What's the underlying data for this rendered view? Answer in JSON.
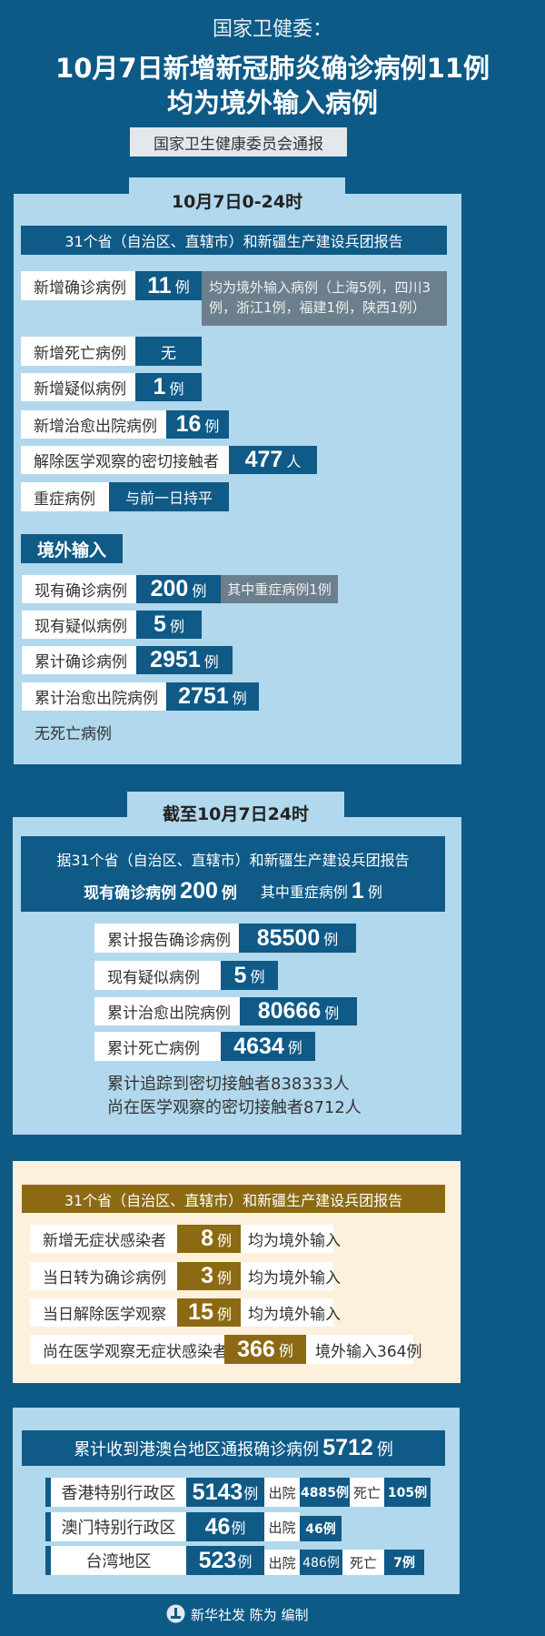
{
  "header": {
    "source": "国家卫健委：",
    "title_line1": "10月7日新增新冠肺炎确诊病例11例",
    "title_line2": "均为境外输入病例",
    "badge": "国家卫生健康委员会通报"
  },
  "colors": {
    "background": "#0d5a87",
    "panel": "#b1d8ec",
    "value_box": "#0f5a87",
    "note_box": "#6b7f8c",
    "asymptomatic_panel": "#fdf0dd",
    "asymptomatic_box": "#8c6a14"
  },
  "daily": {
    "tab": "10月7日0-24时",
    "banner": "31个省（自治区、直辖市）和新疆生产建设兵团报告",
    "rows": [
      {
        "label": "新增确诊病例",
        "value": "11",
        "unit": "例",
        "note": "均为境外输入病例（上海5例，四川3例，浙江1例，福建1例，陕西1例）"
      },
      {
        "label": "新增死亡病例",
        "value": "无"
      },
      {
        "label": "新增疑似病例",
        "value": "1",
        "unit": "例"
      },
      {
        "label": "新增治愈出院病例",
        "value": "16",
        "unit": "例"
      },
      {
        "label": "解除医学观察的密切接触者",
        "value": "477",
        "unit": "人"
      },
      {
        "label": "重症病例",
        "value": "与前一日持平"
      }
    ],
    "imported": {
      "heading": "境外输入",
      "rows": [
        {
          "label": "现有确诊病例",
          "value": "200",
          "unit": "例",
          "note": "其中重症病例1例"
        },
        {
          "label": "现有疑似病例",
          "value": "5",
          "unit": "例"
        },
        {
          "label": "累计确诊病例",
          "value": "2951",
          "unit": "例"
        },
        {
          "label": "累计治愈出院病例",
          "value": "2751",
          "unit": "例"
        }
      ],
      "footnote": "无死亡病例"
    }
  },
  "cumulative": {
    "tab": "截至10月7日24时",
    "banner": "据31个省（自治区、直辖市）和新疆生产建设兵团报告",
    "current_label": "现有确诊病例",
    "current_value": "200",
    "current_unit": "例",
    "severe_label": "其中重症病例",
    "severe_value": "1",
    "severe_unit": "例",
    "rows": [
      {
        "label": "累计报告确诊病例",
        "value": "85500",
        "unit": "例"
      },
      {
        "label": "现有疑似病例",
        "value": "5",
        "unit": "例"
      },
      {
        "label": "累计治愈出院病例",
        "value": "80666",
        "unit": "例"
      },
      {
        "label": "累计死亡病例",
        "value": "4634",
        "unit": "例"
      }
    ],
    "contacts_traced": "累计追踪到密切接触者838333人",
    "contacts_observed": "尚在医学观察的密切接触者8712人"
  },
  "asymptomatic": {
    "banner": "31个省（自治区、直辖市）和新疆生产建设兵团报告",
    "rows": [
      {
        "label": "新增无症状感染者",
        "value": "8",
        "unit": "例",
        "note": "均为境外输入"
      },
      {
        "label": "当日转为确诊病例",
        "value": "3",
        "unit": "例",
        "note": "均为境外输入"
      },
      {
        "label": "当日解除医学观察",
        "value": "15",
        "unit": "例",
        "note": "均为境外输入"
      },
      {
        "label": "尚在医学观察无症状感染者",
        "value": "366",
        "unit": "例",
        "note": "境外输入364例"
      }
    ]
  },
  "hmt": {
    "banner_text": "累计收到港澳台地区通报确诊病例",
    "banner_value": "5712",
    "banner_unit": "例",
    "discharged_label": "出院",
    "death_label": "死亡",
    "rows": [
      {
        "label": "香港特别行政区",
        "value": "5143",
        "unit": "例",
        "discharged": "4885例",
        "deaths": "105例"
      },
      {
        "label": "澳门特别行政区",
        "value": "46",
        "unit": "例",
        "discharged": "46例"
      },
      {
        "label": "台湾地区",
        "value": "523",
        "unit": "例",
        "discharged": "486例",
        "deaths": "7例"
      }
    ]
  },
  "footer": {
    "credit": "新华社发 陈为 编制",
    "logo_icon": "xinhua-logo-icon"
  }
}
